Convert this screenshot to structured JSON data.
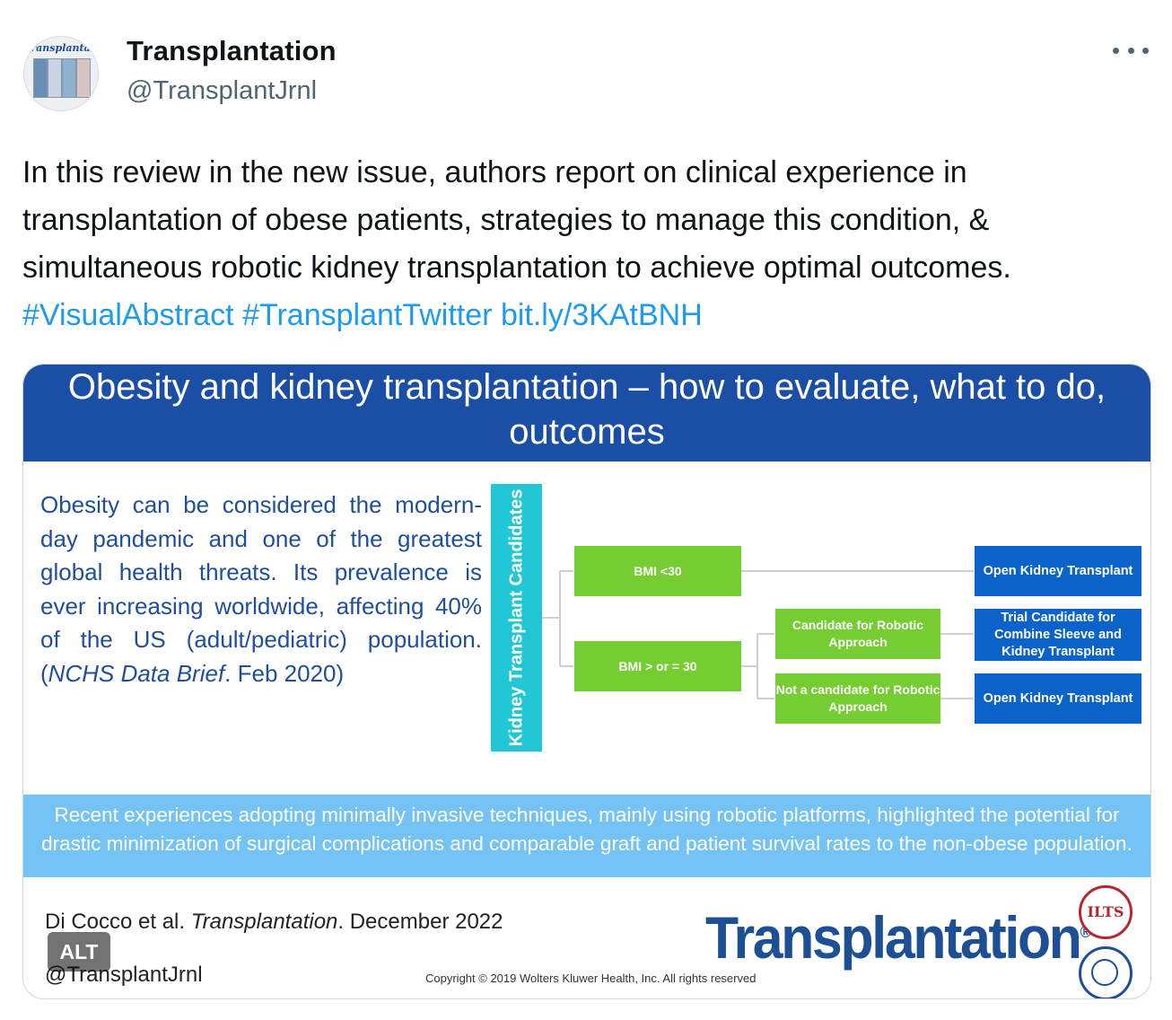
{
  "tweet": {
    "author_name": "Transplantation",
    "author_handle": "@TransplantJrnl",
    "avatar_mast": "Transplantation",
    "body_text": "In this review in the new issue, authors report on clinical experience in transplantation of obese patients, strategies to manage this condition, & simultaneous robotic kidney transplantation to achieve optimal outcomes. ",
    "hashtag_1": "#VisualAbstract",
    "hashtag_2": "#TransplantTwitter",
    "link": "bit.ly/3KAtBNH",
    "more_icon": "more-options-icon"
  },
  "media": {
    "title": "Obesity and kidney transplantation – how to evaluate, what to do, outcomes",
    "intro_text": "Obesity can be considered the modern-day pandemic and one of the greatest global health threats. Its prevalence is ever increasing worldwide, affecting 40% of the US (adult/pediatric) population. (",
    "intro_source": "NCHS Data Brief",
    "intro_tail": ". Feb 2020)",
    "vertical_label": "Kidney Transplant Candidates",
    "flow": {
      "bmi_low": "BMI <30",
      "bmi_high": "BMI > or = 30",
      "robotic_candidate": "Candidate for Robotic Approach",
      "not_robotic_candidate": "Not a candidate for Robotic Approach",
      "open_kt_1": "Open Kidney Transplant",
      "trial_candidate": "Trial Candidate for Combine Sleeve and Kidney Transplant",
      "open_kt_2": "Open Kidney Transplant"
    },
    "bottom_text": "Recent experiences adopting minimally invasive techniques, mainly using robotic platforms, highlighted the potential for drastic minimization of surgical complications and comparable graft and patient survival rates to the non-obese population.",
    "citation_authors": "Di Cocco et al. ",
    "citation_journal": "Transplantation",
    "citation_date": ". December 2022",
    "citation_handle": "@TransplantJrnl",
    "copyright": "Copyright © 2019 Wolters Kluwer Health, Inc. All rights reserved",
    "journal_logo": "Transplantation",
    "journal_logo_mark": "®",
    "seal_text": "ILTS",
    "alt_badge": "ALT"
  },
  "colors": {
    "banner": "#1b4fa6",
    "intro_text": "#1f4f9a",
    "vertical_bar": "#22c7d6",
    "green_box": "#76cd32",
    "navy_box": "#0b63c9",
    "bottom_band": "#74c3f4",
    "link": "#1d9bf0"
  }
}
